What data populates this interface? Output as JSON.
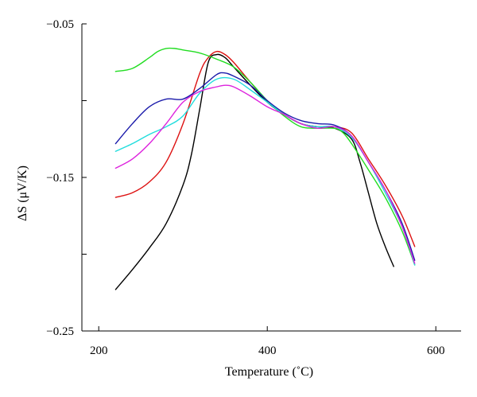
{
  "chart_data": {
    "type": "line",
    "title": "",
    "xlabel": "Temperature (˚C)",
    "ylabel": "ΔS (μV/K)",
    "xlim": [
      180,
      630
    ],
    "ylim": [
      -0.25,
      -0.05
    ],
    "x_ticks": [
      200,
      400,
      600
    ],
    "x_tick_labels": [
      "200",
      "400",
      "600"
    ],
    "y_ticks": [
      -0.05,
      -0.1,
      -0.15,
      -0.2,
      -0.25
    ],
    "y_tick_labels": [
      "−0.05",
      "",
      "−0.15",
      "",
      "−0.25"
    ],
    "grid": false,
    "legend": "none",
    "series": [
      {
        "color": "#000000",
        "x": [
          220,
          240,
          260,
          280,
          300,
          310,
          320,
          330,
          340,
          350,
          360,
          380,
          400,
          420,
          440,
          460,
          480,
          500,
          510,
          520,
          530,
          540,
          550
        ],
        "y": [
          -0.223,
          -0.21,
          -0.196,
          -0.18,
          -0.155,
          -0.135,
          -0.105,
          -0.075,
          -0.07,
          -0.072,
          -0.078,
          -0.09,
          -0.101,
          -0.109,
          -0.115,
          -0.117,
          -0.118,
          -0.125,
          -0.14,
          -0.16,
          -0.18,
          -0.195,
          -0.208
        ]
      },
      {
        "color": "#dd1111",
        "x": [
          220,
          240,
          260,
          280,
          300,
          320,
          330,
          340,
          350,
          360,
          380,
          400,
          420,
          440,
          460,
          480,
          500,
          520,
          540,
          560,
          575
        ],
        "y": [
          -0.163,
          -0.16,
          -0.153,
          -0.14,
          -0.115,
          -0.082,
          -0.072,
          -0.068,
          -0.07,
          -0.075,
          -0.088,
          -0.1,
          -0.109,
          -0.115,
          -0.117,
          -0.117,
          -0.121,
          -0.138,
          -0.155,
          -0.175,
          -0.195
        ]
      },
      {
        "color": "#22dd22",
        "x": [
          220,
          240,
          260,
          270,
          280,
          290,
          300,
          320,
          340,
          360,
          380,
          400,
          420,
          440,
          460,
          480,
          490,
          500,
          520,
          540,
          560,
          575
        ],
        "y": [
          -0.081,
          -0.079,
          -0.072,
          -0.068,
          -0.066,
          -0.066,
          -0.067,
          -0.069,
          -0.073,
          -0.078,
          -0.088,
          -0.1,
          -0.11,
          -0.117,
          -0.118,
          -0.118,
          -0.121,
          -0.128,
          -0.145,
          -0.163,
          -0.185,
          -0.207
        ]
      },
      {
        "color": "#1a1aaa",
        "x": [
          220,
          240,
          260,
          280,
          300,
          320,
          340,
          350,
          360,
          380,
          400,
          420,
          440,
          460,
          480,
          500,
          520,
          540,
          560,
          575
        ],
        "y": [
          -0.128,
          -0.115,
          -0.104,
          -0.099,
          -0.099,
          -0.092,
          -0.083,
          -0.082,
          -0.084,
          -0.09,
          -0.1,
          -0.108,
          -0.113,
          -0.115,
          -0.116,
          -0.123,
          -0.14,
          -0.158,
          -0.18,
          -0.204
        ]
      },
      {
        "color": "#22dddd",
        "x": [
          220,
          240,
          260,
          280,
          300,
          320,
          340,
          360,
          380,
          400,
          420,
          440,
          460,
          480,
          500,
          520,
          540,
          560,
          575
        ],
        "y": [
          -0.133,
          -0.128,
          -0.122,
          -0.117,
          -0.11,
          -0.095,
          -0.086,
          -0.086,
          -0.093,
          -0.101,
          -0.109,
          -0.115,
          -0.117,
          -0.117,
          -0.124,
          -0.14,
          -0.16,
          -0.182,
          -0.207
        ]
      },
      {
        "color": "#dd22dd",
        "x": [
          220,
          240,
          260,
          280,
          300,
          320,
          340,
          350,
          360,
          380,
          400,
          420,
          440,
          460,
          480,
          500,
          520,
          540,
          560,
          575
        ],
        "y": [
          -0.144,
          -0.138,
          -0.128,
          -0.115,
          -0.101,
          -0.094,
          -0.091,
          -0.09,
          -0.091,
          -0.097,
          -0.104,
          -0.109,
          -0.115,
          -0.118,
          -0.117,
          -0.123,
          -0.14,
          -0.158,
          -0.182,
          -0.206
        ]
      }
    ]
  }
}
